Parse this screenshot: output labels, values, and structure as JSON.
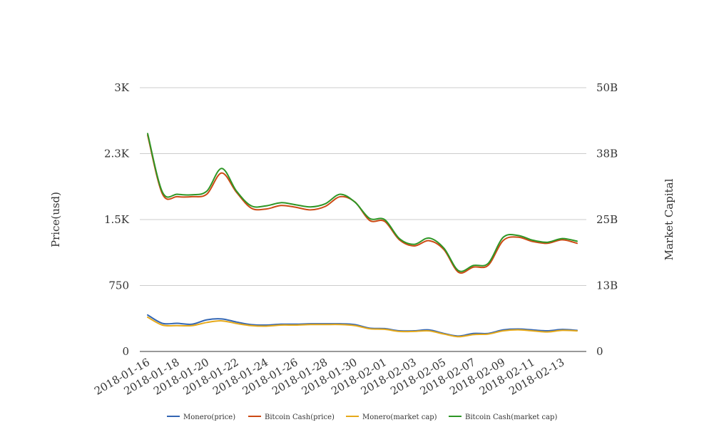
{
  "chart_data": {
    "type": "line",
    "x": [
      "2018-01-16",
      "2018-01-17",
      "2018-01-18",
      "2018-01-19",
      "2018-01-20",
      "2018-01-21",
      "2018-01-22",
      "2018-01-23",
      "2018-01-24",
      "2018-01-25",
      "2018-01-26",
      "2018-01-27",
      "2018-01-28",
      "2018-01-29",
      "2018-01-30",
      "2018-01-31",
      "2018-02-01",
      "2018-02-02",
      "2018-02-03",
      "2018-02-04",
      "2018-02-05",
      "2018-02-06",
      "2018-02-07",
      "2018-02-08",
      "2018-02-09",
      "2018-02-10",
      "2018-02-11",
      "2018-02-12",
      "2018-02-13",
      "2018-02-14"
    ],
    "x_tick_labels": [
      "2018-01-16",
      "2018-01-18",
      "2018-01-20",
      "2018-01-22",
      "2018-01-24",
      "2018-01-26",
      "2018-01-28",
      "2018-01-30",
      "2018-02-01",
      "2018-02-03",
      "2018-02-05",
      "2018-02-07",
      "2018-02-09",
      "2018-02-11",
      "2018-02-13"
    ],
    "y_left": {
      "label": "Price(usd)",
      "ticks": [
        "0",
        "750",
        "1.5K",
        "2.3K",
        "3K"
      ],
      "tick_values": [
        0,
        750,
        1500,
        2250,
        3000
      ],
      "range": [
        0,
        3000
      ]
    },
    "y_right": {
      "label": "Market Capital",
      "ticks": [
        "0",
        "13B",
        "25B",
        "38B",
        "50B"
      ],
      "tick_values": [
        0,
        12500000000,
        25000000000,
        37500000000,
        50000000000
      ],
      "range": [
        0,
        50000000000
      ]
    },
    "grid": true,
    "legend_position": "bottom",
    "series": [
      {
        "name": "Monero(price)",
        "axis": "left",
        "color": "#3366b3",
        "values": [
          415,
          320,
          320,
          310,
          360,
          370,
          335,
          305,
          300,
          310,
          310,
          315,
          315,
          315,
          305,
          265,
          260,
          235,
          235,
          245,
          205,
          175,
          205,
          205,
          245,
          255,
          245,
          235,
          250,
          240
        ]
      },
      {
        "name": "Bitcoin Cash(price)",
        "axis": "left",
        "color": "#cc4a14",
        "values": [
          2460,
          1790,
          1760,
          1760,
          1790,
          2030,
          1810,
          1630,
          1620,
          1660,
          1640,
          1610,
          1650,
          1760,
          1700,
          1490,
          1480,
          1270,
          1200,
          1260,
          1160,
          900,
          960,
          980,
          1260,
          1300,
          1250,
          1230,
          1270,
          1230
        ]
      },
      {
        "name": "Monero(market cap)",
        "axis": "right",
        "color": "#e6a91a",
        "values": [
          6500000000,
          5000000000,
          4900000000,
          4900000000,
          5500000000,
          5800000000,
          5300000000,
          4900000000,
          4800000000,
          5000000000,
          5000000000,
          5100000000,
          5100000000,
          5100000000,
          4900000000,
          4300000000,
          4200000000,
          3800000000,
          3800000000,
          3900000000,
          3300000000,
          2800000000,
          3200000000,
          3300000000,
          3900000000,
          4100000000,
          3900000000,
          3700000000,
          4000000000,
          3900000000
        ]
      },
      {
        "name": "Bitcoin Cash(market cap)",
        "axis": "right",
        "color": "#2e9625",
        "values": [
          41300000000,
          30200000000,
          29800000000,
          29700000000,
          30400000000,
          34700000000,
          30400000000,
          27600000000,
          27600000000,
          28200000000,
          27800000000,
          27400000000,
          28000000000,
          29800000000,
          28300000000,
          25200000000,
          25000000000,
          21400000000,
          20300000000,
          21500000000,
          19600000000,
          15300000000,
          16300000000,
          16700000000,
          21600000000,
          22000000000,
          21100000000,
          20700000000,
          21400000000,
          20900000000
        ]
      }
    ]
  }
}
